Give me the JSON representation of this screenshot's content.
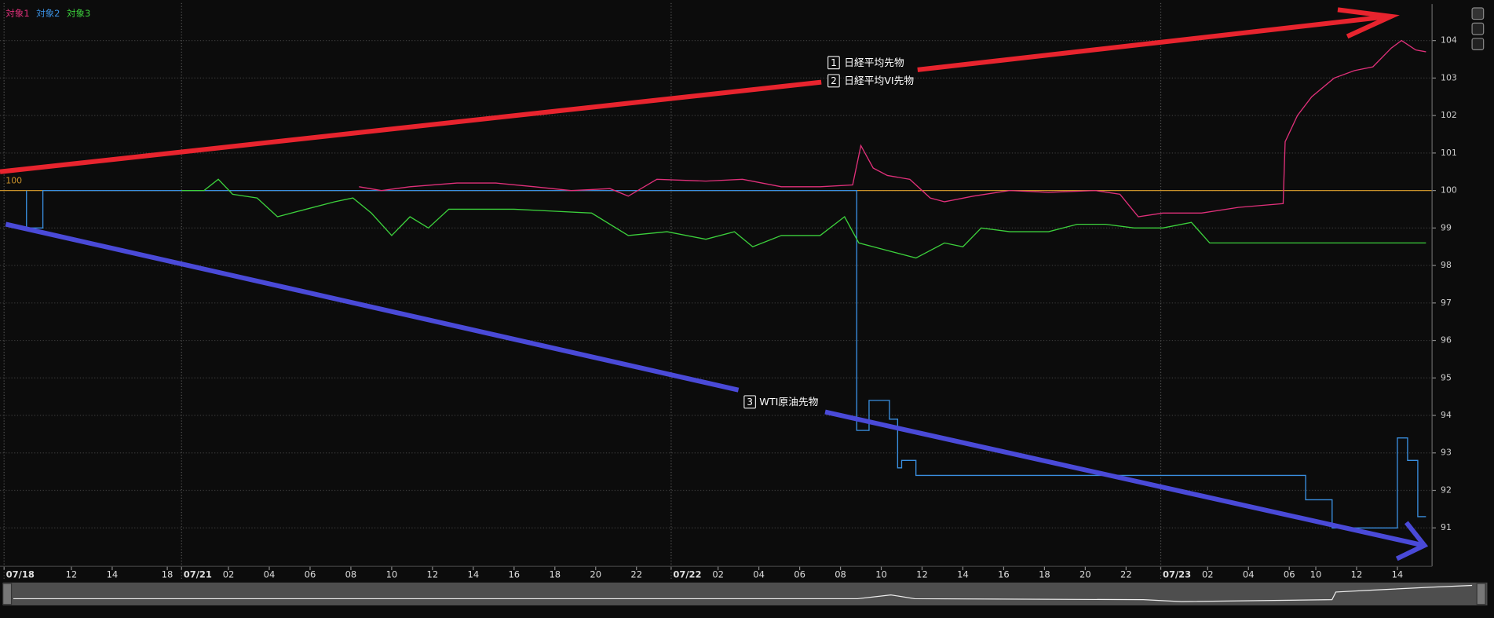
{
  "chart_data": {
    "type": "line",
    "legend": [
      "対象1",
      "対象2",
      "対象3"
    ],
    "xlim": [
      0,
      70.2
    ],
    "ylim": [
      90,
      105
    ],
    "yticks": [
      91,
      92,
      93,
      94,
      95,
      96,
      97,
      98,
      99,
      100,
      101,
      102,
      103,
      104
    ],
    "xticks": [
      {
        "value": 0.2,
        "label": "07/18"
      },
      {
        "value": 3.5,
        "label": "12"
      },
      {
        "value": 5.5,
        "label": "14"
      },
      {
        "value": 8.2,
        "label": "18"
      },
      {
        "value": 8.9,
        "label": "07/21"
      },
      {
        "value": 11.2,
        "label": "02"
      },
      {
        "value": 13.2,
        "label": "04"
      },
      {
        "value": 15.2,
        "label": "06"
      },
      {
        "value": 17.2,
        "label": "08"
      },
      {
        "value": 19.2,
        "label": "10"
      },
      {
        "value": 21.2,
        "label": "12"
      },
      {
        "value": 23.2,
        "label": "14"
      },
      {
        "value": 25.2,
        "label": "16"
      },
      {
        "value": 27.2,
        "label": "18"
      },
      {
        "value": 29.2,
        "label": "20"
      },
      {
        "value": 31.2,
        "label": "22"
      },
      {
        "value": 32.9,
        "label": "07/22"
      },
      {
        "value": 35.2,
        "label": "02"
      },
      {
        "value": 37.2,
        "label": "04"
      },
      {
        "value": 39.2,
        "label": "06"
      },
      {
        "value": 41.2,
        "label": "08"
      },
      {
        "value": 43.2,
        "label": "10"
      },
      {
        "value": 45.2,
        "label": "12"
      },
      {
        "value": 47.2,
        "label": "14"
      },
      {
        "value": 49.2,
        "label": "16"
      },
      {
        "value": 51.2,
        "label": "18"
      },
      {
        "value": 53.2,
        "label": "20"
      },
      {
        "value": 55.2,
        "label": "22"
      },
      {
        "value": 56.9,
        "label": "07/23"
      },
      {
        "value": 59.2,
        "label": "02"
      },
      {
        "value": 61.2,
        "label": "04"
      },
      {
        "value": 63.2,
        "label": "06"
      },
      {
        "value": 64.5,
        "label": "10"
      },
      {
        "value": 66.5,
        "label": "12"
      },
      {
        "value": 68.5,
        "label": "14"
      }
    ],
    "baseline": 100,
    "baseline_color": "#c8912a",
    "grid": true,
    "series": [
      {
        "name": "対象1",
        "color": "#e0307a",
        "x": [
          17.6,
          18.7,
          20.1,
          22.4,
          24.3,
          26.2,
          28.0,
          29.9,
          30.8,
          32.2,
          34.6,
          36.4,
          38.3,
          40.2,
          41.8,
          42.2,
          42.8,
          43.5,
          44.6,
          45.6,
          46.3,
          47.7,
          49.5,
          51.4,
          53.7,
          54.9,
          55.8,
          57.0,
          58.9,
          60.7,
          62.9,
          63.0,
          63.6,
          64.3,
          65.4,
          66.4,
          67.3,
          68.2,
          68.7,
          69.4,
          69.9
        ],
        "values": [
          100.1,
          100.0,
          100.1,
          100.2,
          100.2,
          100.1,
          100.0,
          100.05,
          99.85,
          100.3,
          100.25,
          100.3,
          100.1,
          100.1,
          100.15,
          101.2,
          100.6,
          100.4,
          100.3,
          99.8,
          99.7,
          99.85,
          100.0,
          99.95,
          100.0,
          99.9,
          99.3,
          99.4,
          99.4,
          99.55,
          99.65,
          101.3,
          102.0,
          102.5,
          103.0,
          103.2,
          103.3,
          103.8,
          104.0,
          103.75,
          103.7
        ]
      },
      {
        "name": "対象2",
        "color": "#3a8fe0",
        "x": [
          1.3,
          1.3,
          2.1,
          2.1,
          42.0,
          42.0,
          42.6,
          42.6,
          43.6,
          43.6,
          44.0,
          44.0,
          44.2,
          44.2,
          44.9,
          44.9,
          64.0,
          64.0,
          65.3,
          65.3,
          68.5,
          68.5,
          69.0,
          69.0,
          69.5,
          69.5,
          69.9
        ],
        "values": [
          100,
          99,
          99,
          100,
          100,
          93.6,
          93.6,
          94.4,
          94.4,
          93.9,
          93.9,
          92.6,
          92.6,
          92.8,
          92.8,
          92.4,
          92.4,
          91.75,
          91.75,
          91.0,
          91.0,
          93.4,
          93.4,
          92.8,
          92.8,
          91.3,
          91.3
        ]
      },
      {
        "name": "対象3",
        "color": "#3cd03c",
        "x": [
          8.9,
          10.0,
          10.7,
          11.4,
          12.6,
          13.6,
          15.0,
          16.4,
          17.3,
          18.2,
          19.2,
          20.1,
          21.0,
          22.0,
          23.4,
          25.2,
          27.1,
          29.0,
          30.8,
          32.7,
          34.6,
          36.0,
          36.9,
          38.3,
          40.2,
          41.4,
          42.1,
          43.5,
          44.9,
          46.3,
          47.2,
          48.1,
          49.5,
          51.4,
          52.8,
          54.2,
          55.6,
          57.0,
          58.4,
          59.3,
          60.7,
          69.9
        ],
        "values": [
          100.0,
          100.0,
          100.3,
          99.9,
          99.8,
          99.3,
          99.5,
          99.7,
          99.8,
          99.4,
          98.8,
          99.3,
          99.0,
          99.5,
          99.5,
          99.5,
          99.45,
          99.4,
          98.8,
          98.9,
          98.7,
          98.9,
          98.5,
          98.8,
          98.8,
          99.3,
          98.6,
          98.4,
          98.2,
          98.6,
          98.5,
          99.0,
          98.9,
          98.9,
          99.1,
          99.1,
          99.0,
          99.0,
          99.15,
          98.6,
          98.6,
          98.6
        ]
      }
    ],
    "annotations": [
      {
        "number": "1",
        "text": "日経平均先物"
      },
      {
        "number": "2",
        "text": "日経平均VI先物"
      },
      {
        "number": "3",
        "text": "WTI原油先物"
      }
    ]
  }
}
